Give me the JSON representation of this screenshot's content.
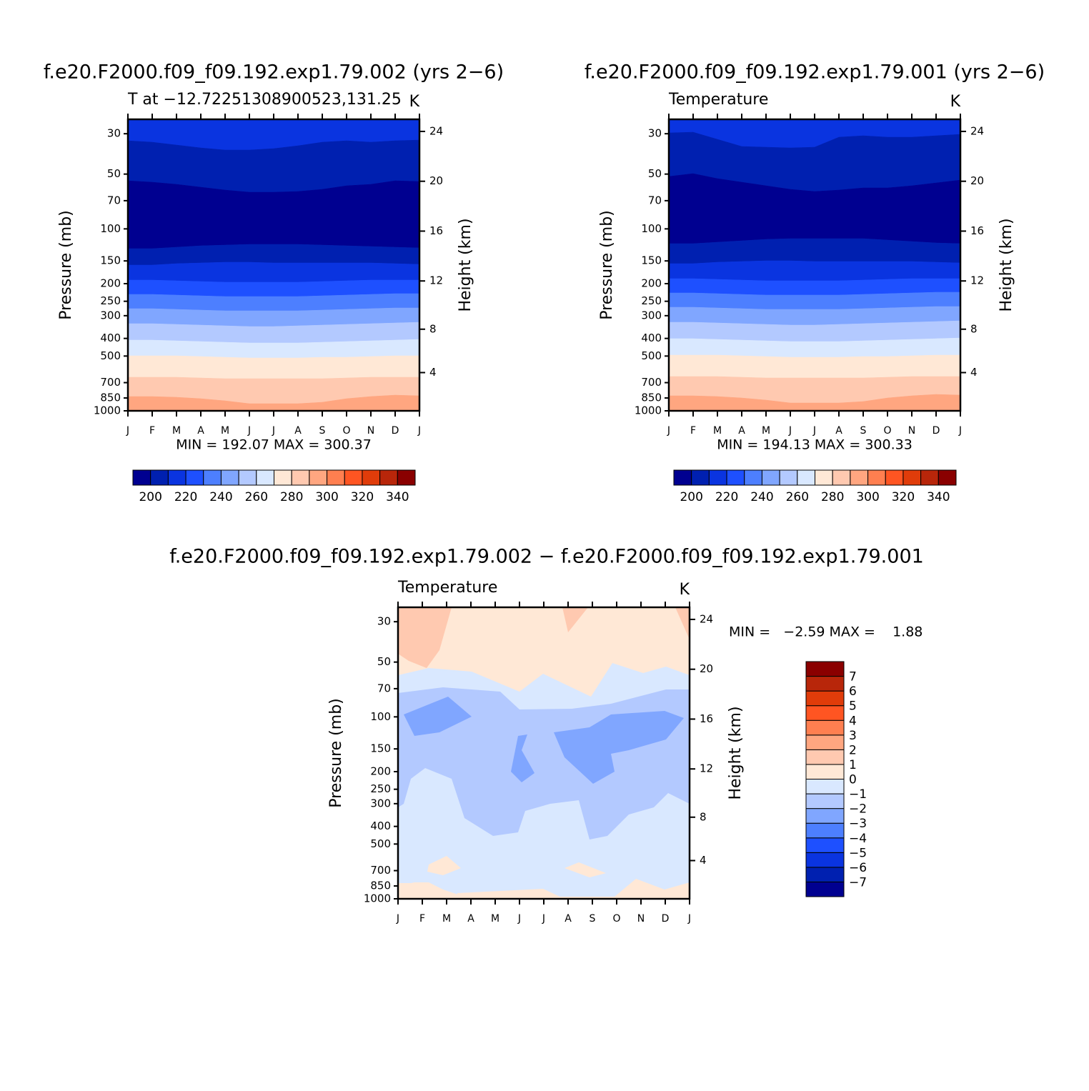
{
  "chart_data": [
    {
      "type": "contour",
      "title": "f.e20.F2000.f09_f09.192.exp1.79.002 (yrs 2−6)",
      "left_string": "T at −12.72251308900523,131.25",
      "right_string": "K",
      "ylabel": "Pressure (mb)",
      "y2label": "Height (km)",
      "categories": [
        "J",
        "F",
        "M",
        "A",
        "M",
        "J",
        "J",
        "A",
        "S",
        "O",
        "N",
        "D",
        "J"
      ],
      "log_y": true,
      "ylim": [
        1000,
        25
      ],
      "yticks": [
        30,
        50,
        70,
        100,
        150,
        200,
        250,
        300,
        400,
        500,
        700,
        850,
        1000
      ],
      "y2ticks": [
        4,
        8,
        12,
        16,
        20,
        24
      ],
      "stats": "MIN = 192.07 MAX = 300.37",
      "colorbar": {
        "orientation": "horizontal",
        "clim": [
          190,
          350
        ],
        "ticks": [
          200,
          220,
          240,
          260,
          280,
          300,
          320,
          340
        ],
        "colors": [
          "#000090",
          "#0020b0",
          "#0a34e0",
          "#1e50ff",
          "#4d7fff",
          "#80a6ff",
          "#b3c9ff",
          "#d9e8ff",
          "#ffe8d6",
          "#ffc9b0",
          "#ffa680",
          "#ff7f50",
          "#ff5522",
          "#e03c0a",
          "#b8260a",
          "#8a0000"
        ]
      }
    },
    {
      "type": "contour",
      "title": "f.e20.F2000.f09_f09.192.exp1.79.001 (yrs 2−6)",
      "left_string": "Temperature",
      "right_string": "K",
      "ylabel": "Pressure (mb)",
      "y2label": "Height (km)",
      "categories": [
        "J",
        "F",
        "M",
        "A",
        "M",
        "J",
        "J",
        "A",
        "S",
        "O",
        "N",
        "D",
        "J"
      ],
      "log_y": true,
      "ylim": [
        1000,
        25
      ],
      "yticks": [
        30,
        50,
        70,
        100,
        150,
        200,
        250,
        300,
        400,
        500,
        700,
        850,
        1000
      ],
      "y2ticks": [
        4,
        8,
        12,
        16,
        20,
        24
      ],
      "stats": "MIN = 194.13 MAX = 300.33",
      "colorbar": {
        "orientation": "horizontal",
        "clim": [
          190,
          350
        ],
        "ticks": [
          200,
          220,
          240,
          260,
          280,
          300,
          320,
          340
        ],
        "colors": [
          "#000090",
          "#0020b0",
          "#0a34e0",
          "#1e50ff",
          "#4d7fff",
          "#80a6ff",
          "#b3c9ff",
          "#d9e8ff",
          "#ffe8d6",
          "#ffc9b0",
          "#ffa680",
          "#ff7f50",
          "#ff5522",
          "#e03c0a",
          "#b8260a",
          "#8a0000"
        ]
      }
    },
    {
      "type": "contour",
      "title": "f.e20.F2000.f09_f09.192.exp1.79.002 − f.e20.F2000.f09_f09.192.exp1.79.001",
      "left_string": "Temperature",
      "right_string": "K",
      "ylabel": "Pressure (mb)",
      "y2label": "Height (km)",
      "categories": [
        "J",
        "F",
        "M",
        "A",
        "M",
        "J",
        "J",
        "A",
        "S",
        "O",
        "N",
        "D",
        "J"
      ],
      "log_y": true,
      "ylim": [
        1000,
        25
      ],
      "yticks": [
        30,
        50,
        70,
        100,
        150,
        200,
        250,
        300,
        400,
        500,
        700,
        850,
        1000
      ],
      "y2ticks": [
        4,
        8,
        12,
        16,
        20,
        24
      ],
      "stats": "MIN =   −2.59 MAX =    1.88",
      "colorbar": {
        "orientation": "vertical",
        "clim": [
          -8,
          8
        ],
        "ticks": [
          {
            "value": -7,
            "label": "−7"
          },
          {
            "value": -6,
            "label": "−6"
          },
          {
            "value": -5,
            "label": "−5"
          },
          {
            "value": -4,
            "label": "−4"
          },
          {
            "value": -3,
            "label": "−3"
          },
          {
            "value": -2,
            "label": "−2"
          },
          {
            "value": -1,
            "label": "−1"
          },
          0,
          1,
          2,
          3,
          4,
          5,
          6,
          7
        ],
        "colors": [
          "#000090",
          "#0020b0",
          "#0a34e0",
          "#1e50ff",
          "#4d7fff",
          "#80a6ff",
          "#b3c9ff",
          "#d9e8ff",
          "#ffe8d6",
          "#ffc9b0",
          "#ffa680",
          "#ff7f50",
          "#ff5522",
          "#e03c0a",
          "#b8260a",
          "#8a0000"
        ]
      }
    }
  ]
}
